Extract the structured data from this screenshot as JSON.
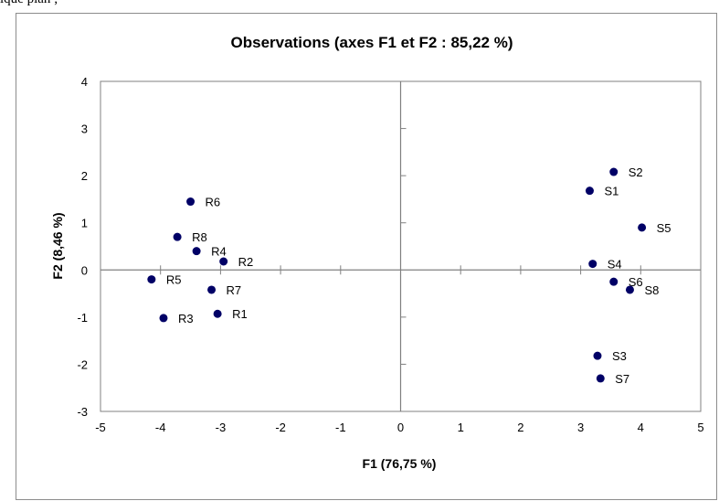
{
  "top_text": "ique plan ;",
  "colors": {
    "points": "#000066",
    "axes": "#808080",
    "frame": "#8c8c8c"
  },
  "chart_data": {
    "type": "scatter",
    "title": "Observations (axes F1 et F2 : 85,22 %)",
    "xlabel": "F1 (76,75 %)",
    "ylabel": "F2 (8,46 %)",
    "xlim": [
      -5,
      5
    ],
    "ylim": [
      -3,
      4
    ],
    "xticks": [
      -5,
      -4,
      -3,
      -2,
      -1,
      0,
      1,
      2,
      3,
      4,
      5
    ],
    "yticks": [
      4,
      3,
      2,
      1,
      0,
      -1,
      -2,
      -3
    ],
    "grid": false,
    "legend": "none",
    "points": [
      {
        "label": "R1",
        "x": -3.05,
        "y": -0.93
      },
      {
        "label": "R2",
        "x": -2.95,
        "y": 0.18
      },
      {
        "label": "R3",
        "x": -3.95,
        "y": -1.02
      },
      {
        "label": "R4",
        "x": -3.4,
        "y": 0.4
      },
      {
        "label": "R5",
        "x": -4.15,
        "y": -0.2
      },
      {
        "label": "R6",
        "x": -3.5,
        "y": 1.45
      },
      {
        "label": "R7",
        "x": -3.15,
        "y": -0.42
      },
      {
        "label": "R8",
        "x": -3.72,
        "y": 0.7
      },
      {
        "label": "S1",
        "x": 3.15,
        "y": 1.68
      },
      {
        "label": "S2",
        "x": 3.55,
        "y": 2.08
      },
      {
        "label": "S3",
        "x": 3.28,
        "y": -1.82
      },
      {
        "label": "S4",
        "x": 3.2,
        "y": 0.13
      },
      {
        "label": "S5",
        "x": 4.02,
        "y": 0.9
      },
      {
        "label": "S6",
        "x": 3.55,
        "y": -0.25
      },
      {
        "label": "S7",
        "x": 3.33,
        "y": -2.3
      },
      {
        "label": "S8",
        "x": 3.82,
        "y": -0.42
      }
    ]
  }
}
